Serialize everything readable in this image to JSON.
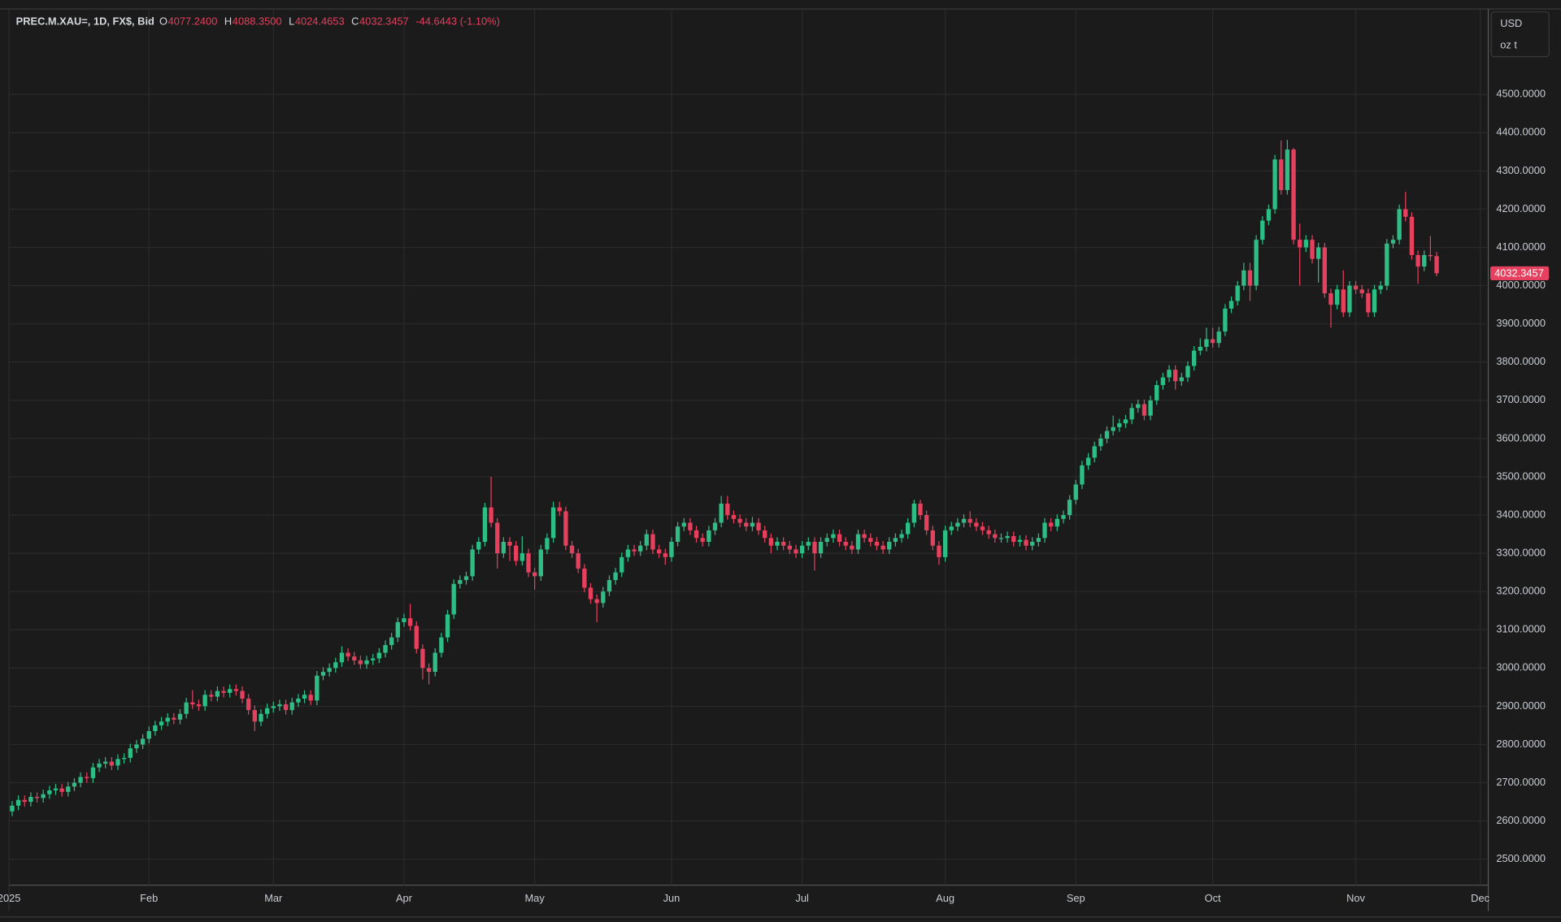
{
  "chart_data": {
    "type": "candlestick",
    "header": {
      "symbol": "PREC.M.XAU=, 1D, FX$, Bid",
      "fields": [
        {
          "key": "O",
          "value": "4077.2400"
        },
        {
          "key": "H",
          "value": "4088.3500"
        },
        {
          "key": "L",
          "value": "4024.4653"
        },
        {
          "key": "C",
          "value": "4032.3457"
        }
      ],
      "change": "-44.6443 (-1.10%)"
    },
    "units": [
      "USD",
      "oz t"
    ],
    "up_color": "#2dbd85",
    "down_color": "#e5405e",
    "grid": true,
    "xlim": [
      -0.5,
      237.3
    ],
    "xticks": [
      {
        "value": -0.5,
        "label": "2025"
      },
      {
        "value": 22,
        "label": "Feb"
      },
      {
        "value": 42,
        "label": "Mar"
      },
      {
        "value": 63,
        "label": "Apr"
      },
      {
        "value": 84,
        "label": "May"
      },
      {
        "value": 106,
        "label": "Jun"
      },
      {
        "value": 127,
        "label": "Jul"
      },
      {
        "value": 150,
        "label": "Aug"
      },
      {
        "value": 171,
        "label": "Sep"
      },
      {
        "value": 193,
        "label": "Oct"
      },
      {
        "value": 216,
        "label": "Nov"
      },
      {
        "value": 236,
        "label": "Dec"
      }
    ],
    "ylim": [
      2432,
      4721
    ],
    "yticks": [
      {
        "value": 2500,
        "label": "2500.0000"
      },
      {
        "value": 2600,
        "label": "2600.0000"
      },
      {
        "value": 2700,
        "label": "2700.0000"
      },
      {
        "value": 2800,
        "label": "2800.0000"
      },
      {
        "value": 2900,
        "label": "2900.0000"
      },
      {
        "value": 3000,
        "label": "3000.0000"
      },
      {
        "value": 3100,
        "label": "3100.0000"
      },
      {
        "value": 3200,
        "label": "3200.0000"
      },
      {
        "value": 3300,
        "label": "3300.0000"
      },
      {
        "value": 3400,
        "label": "3400.0000"
      },
      {
        "value": 3500,
        "label": "3500.0000"
      },
      {
        "value": 3600,
        "label": "3600.0000"
      },
      {
        "value": 3700,
        "label": "3700.0000"
      },
      {
        "value": 3800,
        "label": "3800.0000"
      },
      {
        "value": 3900,
        "label": "3900.0000"
      },
      {
        "value": 4000,
        "label": "4000.0000"
      },
      {
        "value": 4100,
        "label": "4100.0000"
      },
      {
        "value": 4200,
        "label": "4200.0000"
      },
      {
        "value": 4300,
        "label": "4300.0000"
      },
      {
        "value": 4400,
        "label": "4400.0000"
      },
      {
        "value": 4500,
        "label": "4500.0000"
      }
    ],
    "open": [
      2625,
      2640,
      2655,
      2650,
      2663,
      2660,
      2670,
      2680,
      2685,
      2676,
      2690,
      2700,
      2715,
      2712,
      2740,
      2750,
      2755,
      2745,
      2762,
      2765,
      2790,
      2800,
      2815,
      2835,
      2850,
      2860,
      2870,
      2865,
      2880,
      2910,
      2905,
      2900,
      2930,
      2925,
      2940,
      2935,
      2945,
      2940,
      2920,
      2890,
      2860,
      2880,
      2895,
      2900,
      2905,
      2890,
      2910,
      2920,
      2930,
      2915,
      2980,
      2990,
      3000,
      3015,
      3040,
      3030,
      3020,
      3010,
      3020,
      3025,
      3040,
      3060,
      3080,
      3120,
      3130,
      3110,
      3050,
      3000,
      2990,
      3040,
      3080,
      3140,
      3220,
      3230,
      3240,
      3310,
      3330,
      3420,
      3380,
      3300,
      3330,
      3320,
      3280,
      3300,
      3250,
      3240,
      3310,
      3340,
      3420,
      3410,
      3320,
      3300,
      3260,
      3210,
      3180,
      3170,
      3200,
      3230,
      3250,
      3290,
      3310,
      3305,
      3320,
      3350,
      3310,
      3300,
      3290,
      3330,
      3370,
      3380,
      3360,
      3340,
      3330,
      3360,
      3380,
      3430,
      3400,
      3390,
      3380,
      3370,
      3380,
      3360,
      3340,
      3320,
      3330,
      3320,
      3310,
      3300,
      3320,
      3330,
      3300,
      3330,
      3340,
      3350,
      3330,
      3320,
      3310,
      3350,
      3340,
      3330,
      3320,
      3310,
      3330,
      3340,
      3350,
      3380,
      3430,
      3400,
      3360,
      3320,
      3290,
      3360,
      3370,
      3380,
      3390,
      3380,
      3370,
      3360,
      3350,
      3340,
      3340,
      3345,
      3330,
      3335,
      3320,
      3330,
      3340,
      3380,
      3370,
      3390,
      3400,
      3440,
      3480,
      3530,
      3550,
      3580,
      3600,
      3620,
      3630,
      3640,
      3650,
      3680,
      3690,
      3660,
      3700,
      3740,
      3760,
      3780,
      3750,
      3760,
      3790,
      3830,
      3840,
      3860,
      3850,
      3880,
      3940,
      3960,
      4000,
      4040,
      4000,
      4120,
      4170,
      4200,
      4330,
      4250,
      4356,
      4120,
      4100,
      4120,
      4070,
      4100,
      3980,
      3950,
      3990,
      3930,
      4000,
      3990,
      3980,
      3930,
      3990,
      4000,
      4110,
      4120,
      4200,
      4180,
      4080,
      4050,
      4080,
      4077.24
    ],
    "high": [
      2652,
      2667,
      2667,
      2675,
      2675,
      2682,
      2692,
      2697,
      2697,
      2702,
      2712,
      2727,
      2727,
      2752,
      2762,
      2767,
      2767,
      2774,
      2777,
      2802,
      2812,
      2827,
      2847,
      2862,
      2872,
      2882,
      2882,
      2892,
      2922,
      2942,
      2917,
      2942,
      2942,
      2952,
      2952,
      2957,
      2957,
      2952,
      2932,
      2902,
      2892,
      2907,
      2912,
      2917,
      2917,
      2922,
      2932,
      2942,
      2942,
      2992,
      3002,
      3012,
      3027,
      3057,
      3052,
      3042,
      3032,
      3032,
      3037,
      3052,
      3072,
      3092,
      3132,
      3142,
      3168,
      3122,
      3062,
      3012,
      3052,
      3092,
      3152,
      3232,
      3242,
      3252,
      3322,
      3342,
      3432,
      3500,
      3392,
      3342,
      3342,
      3332,
      3345,
      3312,
      3262,
      3322,
      3352,
      3435,
      3435,
      3422,
      3332,
      3312,
      3272,
      3222,
      3192,
      3212,
      3242,
      3262,
      3302,
      3322,
      3322,
      3332,
      3362,
      3362,
      3322,
      3312,
      3342,
      3382,
      3392,
      3392,
      3372,
      3352,
      3372,
      3392,
      3450,
      3450,
      3412,
      3402,
      3392,
      3395,
      3392,
      3372,
      3352,
      3342,
      3342,
      3332,
      3322,
      3332,
      3342,
      3342,
      3342,
      3352,
      3362,
      3362,
      3342,
      3332,
      3362,
      3362,
      3352,
      3342,
      3332,
      3342,
      3352,
      3362,
      3392,
      3440,
      3440,
      3412,
      3372,
      3332,
      3372,
      3382,
      3392,
      3402,
      3410,
      3392,
      3382,
      3372,
      3362,
      3352,
      3357,
      3357,
      3347,
      3347,
      3342,
      3352,
      3392,
      3392,
      3402,
      3412,
      3452,
      3492,
      3542,
      3562,
      3592,
      3612,
      3632,
      3660,
      3652,
      3662,
      3692,
      3702,
      3702,
      3712,
      3752,
      3772,
      3792,
      3792,
      3772,
      3802,
      3842,
      3862,
      3890,
      3890,
      3892,
      3952,
      3972,
      4012,
      4060,
      4060,
      4132,
      4182,
      4212,
      4342,
      4380,
      4381,
      4360,
      4162,
      4132,
      4132,
      4112,
      4112,
      3992,
      4002,
      4040,
      4012,
      4012,
      4002,
      3992,
      4002,
      4012,
      4122,
      4132,
      4212,
      4245,
      4192,
      4092,
      4092,
      4130,
      4088.35
    ],
    "low": [
      2613,
      2628,
      2638,
      2638,
      2648,
      2648,
      2658,
      2668,
      2664,
      2664,
      2678,
      2688,
      2700,
      2700,
      2728,
      2738,
      2733,
      2733,
      2750,
      2753,
      2778,
      2788,
      2803,
      2823,
      2838,
      2848,
      2853,
      2853,
      2868,
      2893,
      2888,
      2888,
      2913,
      2913,
      2923,
      2923,
      2928,
      2908,
      2878,
      2835,
      2848,
      2868,
      2883,
      2888,
      2878,
      2878,
      2898,
      2908,
      2903,
      2903,
      2968,
      2978,
      2988,
      3003,
      3018,
      3008,
      2998,
      2998,
      3008,
      3013,
      3028,
      3048,
      3068,
      3108,
      3098,
      3038,
      2970,
      2957,
      2978,
      3028,
      3068,
      3128,
      3208,
      3218,
      3228,
      3298,
      3318,
      3368,
      3260,
      3288,
      3280,
      3268,
      3268,
      3238,
      3205,
      3228,
      3298,
      3328,
      3398,
      3308,
      3288,
      3248,
      3198,
      3168,
      3120,
      3158,
      3188,
      3218,
      3238,
      3278,
      3293,
      3293,
      3308,
      3298,
      3288,
      3270,
      3278,
      3318,
      3358,
      3348,
      3328,
      3318,
      3318,
      3348,
      3368,
      3388,
      3378,
      3368,
      3358,
      3358,
      3348,
      3328,
      3300,
      3308,
      3308,
      3298,
      3288,
      3288,
      3308,
      3255,
      3288,
      3318,
      3328,
      3318,
      3308,
      3298,
      3298,
      3328,
      3318,
      3308,
      3298,
      3298,
      3318,
      3328,
      3338,
      3368,
      3388,
      3348,
      3308,
      3270,
      3278,
      3348,
      3358,
      3368,
      3368,
      3358,
      3348,
      3338,
      3328,
      3328,
      3328,
      3318,
      3318,
      3308,
      3308,
      3318,
      3328,
      3358,
      3358,
      3378,
      3388,
      3428,
      3468,
      3518,
      3538,
      3568,
      3588,
      3608,
      3618,
      3628,
      3638,
      3668,
      3648,
      3648,
      3688,
      3728,
      3748,
      3728,
      3738,
      3748,
      3778,
      3818,
      3828,
      3838,
      3838,
      3868,
      3928,
      3948,
      3988,
      3960,
      3988,
      4108,
      4158,
      4188,
      4238,
      4238,
      4108,
      4000,
      4088,
      4058,
      4008,
      3968,
      3890,
      3938,
      3918,
      3918,
      3978,
      3968,
      3918,
      3918,
      3978,
      3988,
      4098,
      4108,
      4168,
      4068,
      4005,
      4038,
      4065,
      4024.4653
    ],
    "close": [
      2640,
      2655,
      2650,
      2663,
      2660,
      2670,
      2680,
      2685,
      2676,
      2690,
      2700,
      2715,
      2712,
      2740,
      2750,
      2755,
      2745,
      2762,
      2765,
      2790,
      2800,
      2815,
      2835,
      2850,
      2860,
      2870,
      2865,
      2880,
      2910,
      2905,
      2900,
      2930,
      2925,
      2940,
      2935,
      2945,
      2940,
      2920,
      2890,
      2860,
      2880,
      2895,
      2900,
      2905,
      2890,
      2910,
      2920,
      2930,
      2915,
      2980,
      2990,
      3000,
      3015,
      3040,
      3030,
      3020,
      3010,
      3020,
      3025,
      3040,
      3060,
      3080,
      3120,
      3130,
      3110,
      3050,
      3000,
      2990,
      3040,
      3080,
      3140,
      3220,
      3230,
      3240,
      3310,
      3330,
      3420,
      3380,
      3300,
      3330,
      3320,
      3280,
      3300,
      3250,
      3240,
      3310,
      3340,
      3420,
      3410,
      3320,
      3300,
      3260,
      3210,
      3180,
      3170,
      3200,
      3230,
      3250,
      3290,
      3310,
      3305,
      3320,
      3350,
      3310,
      3300,
      3290,
      3330,
      3370,
      3380,
      3360,
      3340,
      3330,
      3360,
      3380,
      3430,
      3400,
      3390,
      3380,
      3370,
      3380,
      3360,
      3340,
      3320,
      3330,
      3320,
      3310,
      3300,
      3320,
      3330,
      3300,
      3330,
      3340,
      3350,
      3330,
      3320,
      3310,
      3350,
      3340,
      3330,
      3320,
      3310,
      3330,
      3340,
      3350,
      3380,
      3430,
      3400,
      3360,
      3320,
      3290,
      3360,
      3370,
      3380,
      3390,
      3380,
      3370,
      3360,
      3350,
      3340,
      3340,
      3345,
      3330,
      3335,
      3320,
      3330,
      3340,
      3380,
      3370,
      3390,
      3400,
      3440,
      3480,
      3530,
      3550,
      3580,
      3600,
      3620,
      3630,
      3640,
      3650,
      3680,
      3690,
      3660,
      3700,
      3740,
      3760,
      3780,
      3750,
      3760,
      3790,
      3830,
      3840,
      3860,
      3850,
      3880,
      3940,
      3960,
      4000,
      4040,
      4000,
      4120,
      4170,
      4200,
      4330,
      4250,
      4356,
      4120,
      4100,
      4120,
      4070,
      4100,
      3980,
      3950,
      3990,
      3930,
      4000,
      3990,
      3980,
      3930,
      3990,
      4000,
      4110,
      4120,
      4200,
      4180,
      4080,
      4050,
      4080,
      4077,
      4032.3457
    ]
  }
}
